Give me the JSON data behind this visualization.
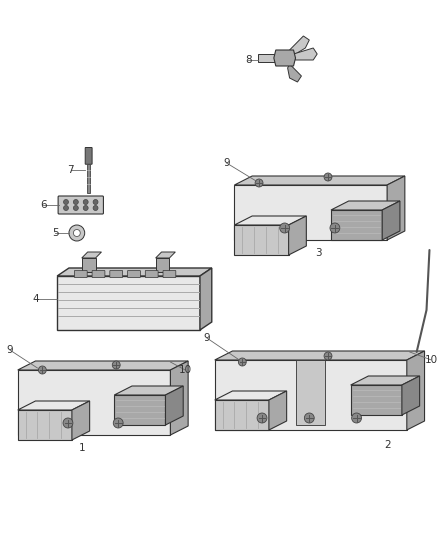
{
  "bg_color": "#ffffff",
  "fig_width": 4.38,
  "fig_height": 5.33,
  "dpi": 100,
  "line_color": "#555555",
  "text_color": "#333333",
  "edge_color": "#333333",
  "face_light": "#e8e8e8",
  "face_mid": "#c8c8c8",
  "face_dark": "#a8a8a8",
  "face_darker": "#888888"
}
